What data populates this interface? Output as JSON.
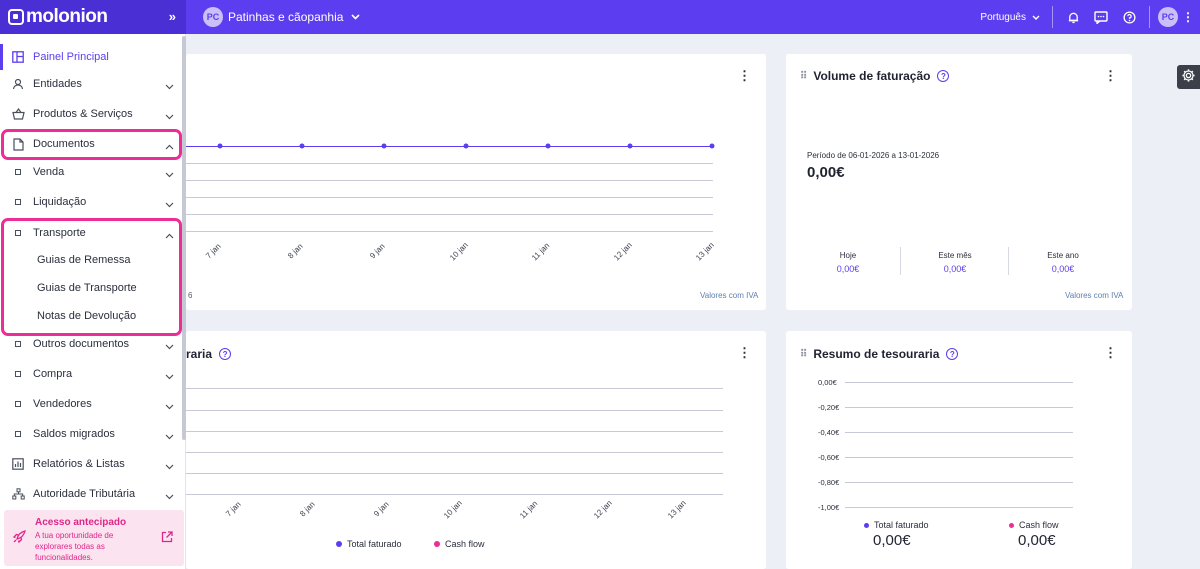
{
  "brand": {
    "name": "molonion"
  },
  "topbar": {
    "collapse_icon": "»",
    "company_initials": "PC",
    "company_name": "Patinhas e cãopanhia",
    "language": "Português",
    "user_initials": "PC",
    "icons": [
      "bell-icon",
      "chat-icon",
      "help-icon"
    ]
  },
  "sidebar": {
    "items": {
      "painel": {
        "label": "Painel Principal",
        "icon": "dashboard-icon"
      },
      "entidades": {
        "label": "Entidades",
        "icon": "user-icon"
      },
      "produtos": {
        "label": "Produtos & Serviços",
        "icon": "basket-icon"
      },
      "documentos": {
        "label": "Documentos",
        "icon": "document-icon"
      },
      "venda": {
        "label": "Venda"
      },
      "liquidacao": {
        "label": "Liquidação"
      },
      "transporte": {
        "label": "Transporte"
      },
      "guias_remessa": {
        "label": "Guias de Remessa"
      },
      "guias_transporte": {
        "label": "Guias de Transporte"
      },
      "notas_devolucao": {
        "label": "Notas de Devolução"
      },
      "outros": {
        "label": "Outros documentos"
      },
      "compra": {
        "label": "Compra"
      },
      "vendedores": {
        "label": "Vendedores"
      },
      "saldos": {
        "label": "Saldos migrados"
      },
      "relatorios": {
        "label": "Relatórios & Listas",
        "icon": "chart-icon"
      },
      "autoridade": {
        "label": "Autoridade Tributária",
        "icon": "network-icon"
      }
    },
    "promo": {
      "title": "Acesso antecipado",
      "text": "A tua oportunidade de explorares todas as funcionalidades."
    }
  },
  "colors": {
    "brand": "#5d3df0",
    "highlight": "#ec2d96",
    "pink": "#e0268a"
  },
  "cards": {
    "top_left": {
      "footer_left_fragment": "6",
      "footer_right": "Valores com IVA",
      "x_ticks": [
        "7 jan",
        "8 jan",
        "9 jan",
        "10 jan",
        "11 jan",
        "12 jan",
        "13 jan"
      ]
    },
    "volume": {
      "title": "Volume de faturação",
      "period": "Período de 06-01-2026 a 13-01-2026",
      "total": "0,00€",
      "stats": [
        {
          "label": "Hoje",
          "value": "0,00€"
        },
        {
          "label": "Este mês",
          "value": "0,00€"
        },
        {
          "label": "Este ano",
          "value": "0,00€"
        }
      ],
      "footer_right": "Valores com IVA"
    },
    "bottom_left": {
      "title_fragment": "raria",
      "x_ticks": [
        "7 jan",
        "8 jan",
        "9 jan",
        "10 jan",
        "11 jan",
        "12 jan",
        "13 jan"
      ],
      "legend": [
        {
          "label": "Total faturado",
          "color": "#5d3df0"
        },
        {
          "label": "Cash flow",
          "color": "#ec2d96"
        }
      ]
    },
    "treasury": {
      "title": "Resumo de tesouraria",
      "y_ticks": [
        "0,00€",
        "-0,20€",
        "-0,40€",
        "-0,60€",
        "-0,80€",
        "-1,00€"
      ],
      "legend": [
        {
          "label": "Total faturado",
          "value": "0,00€",
          "color": "#5d3df0"
        },
        {
          "label": "Cash flow",
          "value": "0,00€",
          "color": "#ec2d96"
        }
      ]
    }
  },
  "settings_icon": "gear-icon"
}
